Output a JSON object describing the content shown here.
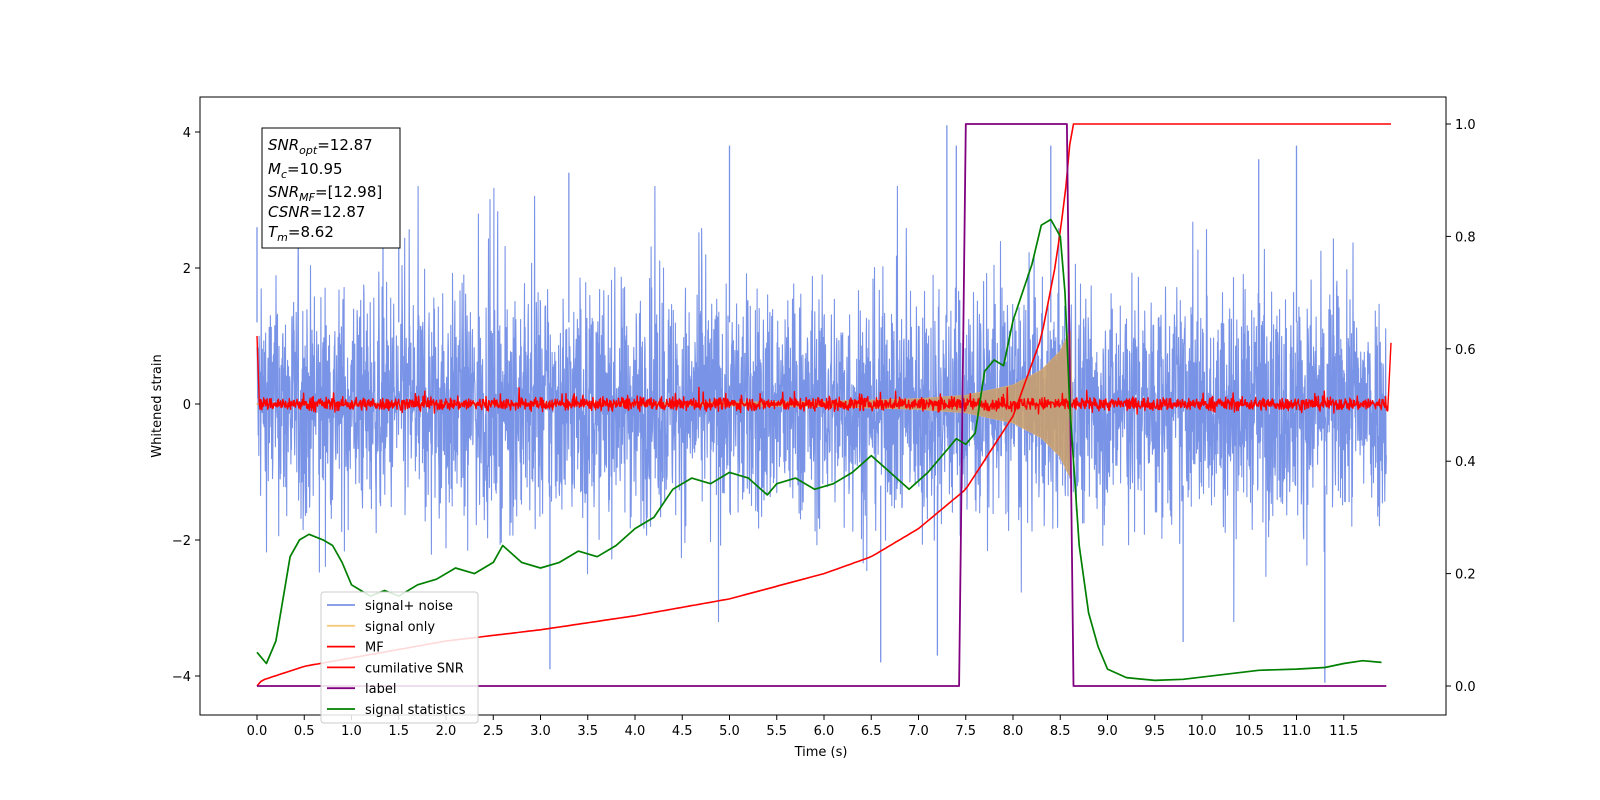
{
  "chart_data": {
    "type": "line",
    "xlabel": "Time (s)",
    "ylabel": "Whitened strain",
    "x_ticks": [
      "0.0",
      "0.5",
      "1.0",
      "1.5",
      "2.0",
      "2.5",
      "3.0",
      "3.5",
      "4.0",
      "4.5",
      "5.0",
      "5.5",
      "6.0",
      "6.5",
      "7.0",
      "7.5",
      "8.0",
      "8.5",
      "9.0",
      "9.5",
      "10.0",
      "10.5",
      "11.0",
      "11.5"
    ],
    "y_ticks_left": [
      "4",
      "2",
      "0",
      "−2",
      "−4"
    ],
    "y_ticks_right": [
      "1.0",
      "0.8",
      "0.6",
      "0.4",
      "0.2",
      "0.0"
    ],
    "xlim": [
      -0.6,
      12.6
    ],
    "ylim_left": [
      -4.55,
      4.5
    ],
    "ylim_right": [
      -0.05,
      1.05
    ],
    "annotation": {
      "snr_opt": {
        "base": "SNR",
        "sub": "opt",
        "value": "=12.87"
      },
      "mc": {
        "base": "M",
        "sub": "c",
        "value": "=10.95"
      },
      "snr_mf": {
        "base": "SNR",
        "sub": "MF",
        "value": "=[12.98]"
      },
      "csnr": {
        "base": "CSNR",
        "sub": "",
        "value": "=12.87"
      },
      "tm": {
        "base": "T",
        "sub": "m",
        "value": "=8.62"
      }
    },
    "legend": {
      "placement": "lower-left",
      "entries": [
        {
          "label": "signal+ noise",
          "color": "#7993e6"
        },
        {
          "label": "signal only",
          "color": "#f7c97a"
        },
        {
          "label": "MF",
          "color": "#ff0000"
        },
        {
          "label": "cumilative SNR",
          "color": "#ff0000"
        },
        {
          "label": "label",
          "color": "#800080"
        },
        {
          "label": "signal statistics",
          "color": "#008000"
        }
      ]
    },
    "series": [
      {
        "name": "signal+ noise",
        "axis": "left",
        "color": "#7993e6",
        "note_range": [
          -2.6,
          2.6
        ],
        "peak_spikes": [
          [
            0.0,
            2.6
          ],
          [
            1.5,
            3.6
          ],
          [
            3.3,
            3.4
          ],
          [
            5.0,
            3.8
          ],
          [
            7.3,
            4.1
          ],
          [
            7.4,
            3.8
          ],
          [
            8.4,
            3.8
          ],
          [
            10.6,
            3.6
          ],
          [
            11.0,
            3.8
          ],
          [
            3.1,
            -3.9
          ],
          [
            6.6,
            -3.8
          ],
          [
            7.2,
            -3.7
          ],
          [
            9.8,
            -3.5
          ],
          [
            11.3,
            -4.1
          ]
        ]
      },
      {
        "name": "signal only",
        "axis": "left",
        "color": "#c8a070",
        "chirp_envelope": [
          [
            0.0,
            0.01
          ],
          [
            4.0,
            0.02
          ],
          [
            6.0,
            0.04
          ],
          [
            7.0,
            0.08
          ],
          [
            7.5,
            0.13
          ],
          [
            8.0,
            0.28
          ],
          [
            8.3,
            0.5
          ],
          [
            8.5,
            0.78
          ],
          [
            8.58,
            1.02
          ],
          [
            8.62,
            1.1
          ],
          [
            8.63,
            0.0
          ]
        ]
      },
      {
        "name": "MF",
        "axis": "left",
        "color": "#ff0000",
        "x_edges": [
          [
            0.0,
            1.0
          ],
          [
            0.02,
            0.2
          ],
          [
            12.0,
            0.9
          ]
        ],
        "noise_amplitude": 0.12
      },
      {
        "name": "cumilative SNR",
        "axis": "right",
        "color": "#ff0000",
        "x": [
          0.0,
          0.05,
          0.5,
          1.0,
          2.0,
          3.0,
          4.0,
          5.0,
          6.0,
          6.5,
          7.0,
          7.5,
          8.0,
          8.3,
          8.45,
          8.55,
          8.62,
          8.63,
          12.0
        ],
        "y": [
          0.0,
          0.01,
          0.035,
          0.05,
          0.08,
          0.1,
          0.125,
          0.155,
          0.2,
          0.23,
          0.28,
          0.35,
          0.48,
          0.62,
          0.75,
          0.87,
          1.0,
          1.0,
          1.0
        ]
      },
      {
        "name": "label",
        "axis": "right",
        "color": "#800080",
        "x": [
          0.0,
          7.43,
          7.5,
          8.57,
          8.64,
          11.95
        ],
        "y": [
          0,
          0,
          1,
          1,
          0,
          0
        ]
      },
      {
        "name": "signal statistics",
        "axis": "right",
        "color": "#008000",
        "x": [
          0.0,
          0.1,
          0.2,
          0.3,
          0.35,
          0.45,
          0.55,
          0.7,
          0.8,
          0.9,
          1.0,
          1.1,
          1.2,
          1.35,
          1.5,
          1.7,
          1.9,
          2.1,
          2.3,
          2.5,
          2.6,
          2.8,
          3.0,
          3.2,
          3.4,
          3.6,
          3.8,
          4.0,
          4.2,
          4.4,
          4.6,
          4.8,
          5.0,
          5.2,
          5.4,
          5.5,
          5.7,
          5.9,
          6.1,
          6.3,
          6.5,
          6.7,
          6.9,
          7.1,
          7.3,
          7.4,
          7.5,
          7.6,
          7.7,
          7.8,
          7.9,
          8.0,
          8.1,
          8.2,
          8.3,
          8.4,
          8.5,
          8.55,
          8.6,
          8.7,
          8.8,
          8.9,
          9.0,
          9.2,
          9.5,
          9.8,
          10.2,
          10.6,
          11.0,
          11.3,
          11.5,
          11.7,
          11.9
        ],
        "y": [
          0.06,
          0.04,
          0.08,
          0.18,
          0.23,
          0.26,
          0.27,
          0.26,
          0.25,
          0.22,
          0.18,
          0.17,
          0.16,
          0.17,
          0.16,
          0.18,
          0.19,
          0.21,
          0.2,
          0.22,
          0.25,
          0.22,
          0.21,
          0.22,
          0.24,
          0.23,
          0.25,
          0.28,
          0.3,
          0.35,
          0.37,
          0.36,
          0.38,
          0.37,
          0.34,
          0.36,
          0.37,
          0.35,
          0.36,
          0.38,
          0.41,
          0.38,
          0.35,
          0.38,
          0.42,
          0.44,
          0.43,
          0.45,
          0.56,
          0.58,
          0.57,
          0.65,
          0.7,
          0.75,
          0.82,
          0.83,
          0.8,
          0.7,
          0.5,
          0.25,
          0.13,
          0.07,
          0.03,
          0.015,
          0.01,
          0.012,
          0.02,
          0.028,
          0.03,
          0.033,
          0.04,
          0.045,
          0.042
        ]
      }
    ]
  }
}
